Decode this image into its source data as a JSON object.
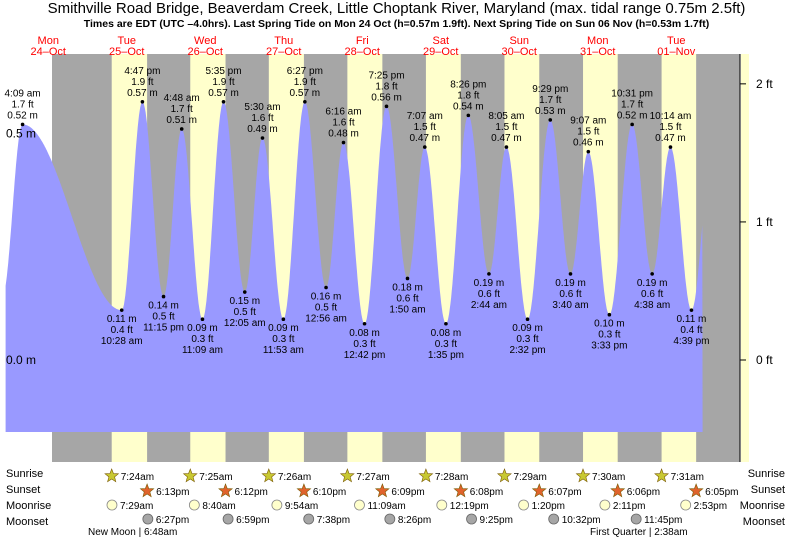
{
  "title": "Smithville Road Bridge, Beaverdam Creek, Little Choptank River, Maryland (max. tidal range 0.75m 2.5ft)",
  "subtitle": "Times are EDT (UTC –4.0hrs). Last Spring Tide on Mon 24 Oct (h=0.57m 1.9ft). Next Spring Tide on Sun 06 Nov (h=0.53m 1.7ft)",
  "colors": {
    "night": "#a6a6a6",
    "day": "#ffffcc",
    "water": "#9999ff",
    "date_label": "#ff0000",
    "sun_star": "#c8c832",
    "set_star": "#e0632c",
    "moonrise": "#ffffcc",
    "moonset": "#a6a6a6"
  },
  "chart_data": {
    "type": "area",
    "title": "Smithville Road Bridge, Beaverdam Creek, Little Choptank River, Maryland (max. tidal range 0.75m 2.5ft)",
    "y_left_ticks": [
      "0.5 m",
      "0.0 m"
    ],
    "y_right_ticks": [
      "2 ft",
      "1 ft",
      "0 ft"
    ],
    "days": [
      {
        "dow": "Mon",
        "date": "24–Oct"
      },
      {
        "dow": "Tue",
        "date": "25–Oct"
      },
      {
        "dow": "Wed",
        "date": "26–Oct"
      },
      {
        "dow": "Thu",
        "date": "27–Oct"
      },
      {
        "dow": "Fri",
        "date": "28–Oct"
      },
      {
        "dow": "Sat",
        "date": "29–Oct"
      },
      {
        "dow": "Sun",
        "date": "30–Oct"
      },
      {
        "dow": "Mon",
        "date": "31–Oct"
      },
      {
        "dow": "Tue",
        "date": "01–Nov"
      }
    ],
    "tides": [
      {
        "type": "high",
        "day": 0,
        "m": "0.52 m",
        "ft": "1.7 ft",
        "time": "4:09 am",
        "v": 0.52
      },
      {
        "type": "low",
        "day": 1,
        "m": "0.11 m",
        "ft": "0.4 ft",
        "time": "10:28 am",
        "v": 0.11
      },
      {
        "type": "high",
        "day": 1,
        "m": "0.57 m",
        "ft": "1.9 ft",
        "time": "4:47 pm",
        "v": 0.57
      },
      {
        "type": "low",
        "day": 1,
        "m": "0.14 m",
        "ft": "0.5 ft",
        "time": "11:15 pm",
        "v": 0.14
      },
      {
        "type": "high",
        "day": 2,
        "m": "0.51 m",
        "ft": "1.7 ft",
        "time": "4:48 am",
        "v": 0.51
      },
      {
        "type": "low",
        "day": 2,
        "m": "0.09 m",
        "ft": "0.3 ft",
        "time": "11:09 am",
        "v": 0.09
      },
      {
        "type": "high",
        "day": 2,
        "m": "0.57 m",
        "ft": "1.9 ft",
        "time": "5:35 pm",
        "v": 0.57
      },
      {
        "type": "low",
        "day": 3,
        "m": "0.15 m",
        "ft": "0.5 ft",
        "time": "12:05 am",
        "v": 0.15
      },
      {
        "type": "high",
        "day": 3,
        "m": "0.49 m",
        "ft": "1.6 ft",
        "time": "5:30 am",
        "v": 0.49
      },
      {
        "type": "low",
        "day": 3,
        "m": "0.09 m",
        "ft": "0.3 ft",
        "time": "11:53 am",
        "v": 0.09
      },
      {
        "type": "high",
        "day": 3,
        "m": "0.57 m",
        "ft": "1.9 ft",
        "time": "6:27 pm",
        "v": 0.57
      },
      {
        "type": "low",
        "day": 4,
        "m": "0.16 m",
        "ft": "0.5 ft",
        "time": "12:56 am",
        "v": 0.16
      },
      {
        "type": "high",
        "day": 4,
        "m": "0.48 m",
        "ft": "1.6 ft",
        "time": "6:16 am",
        "v": 0.48
      },
      {
        "type": "low",
        "day": 4,
        "m": "0.08 m",
        "ft": "0.3 ft",
        "time": "12:42 pm",
        "v": 0.08
      },
      {
        "type": "high",
        "day": 4,
        "m": "0.56 m",
        "ft": "1.8 ft",
        "time": "7:25 pm",
        "v": 0.56
      },
      {
        "type": "low",
        "day": 5,
        "m": "0.18 m",
        "ft": "0.6 ft",
        "time": "1:50 am",
        "v": 0.18
      },
      {
        "type": "high",
        "day": 5,
        "m": "0.47 m",
        "ft": "1.5 ft",
        "time": "7:07 am",
        "v": 0.47
      },
      {
        "type": "low",
        "day": 5,
        "m": "0.08 m",
        "ft": "0.3 ft",
        "time": "1:35 pm",
        "v": 0.08
      },
      {
        "type": "high",
        "day": 5,
        "m": "0.54 m",
        "ft": "1.8 ft",
        "time": "8:26 pm",
        "v": 0.54
      },
      {
        "type": "low",
        "day": 6,
        "m": "0.19 m",
        "ft": "0.6 ft",
        "time": "2:44 am",
        "v": 0.19
      },
      {
        "type": "high",
        "day": 6,
        "m": "0.47 m",
        "ft": "1.5 ft",
        "time": "8:05 am",
        "v": 0.47
      },
      {
        "type": "low",
        "day": 6,
        "m": "0.09 m",
        "ft": "0.3 ft",
        "time": "2:32 pm",
        "v": 0.09
      },
      {
        "type": "high",
        "day": 6,
        "m": "0.53 m",
        "ft": "1.7 ft",
        "time": "9:29 pm",
        "v": 0.53
      },
      {
        "type": "low",
        "day": 7,
        "m": "0.19 m",
        "ft": "0.6 ft",
        "time": "3:40 am",
        "v": 0.19
      },
      {
        "type": "high",
        "day": 7,
        "m": "0.46 m",
        "ft": "1.5 ft",
        "time": "9:07 am",
        "v": 0.46
      },
      {
        "type": "low",
        "day": 7,
        "m": "0.10 m",
        "ft": "0.3 ft",
        "time": "3:33 pm",
        "v": 0.1
      },
      {
        "type": "high",
        "day": 7,
        "m": "0.52 m",
        "ft": "1.7 ft",
        "time": "10:31 pm",
        "v": 0.52
      },
      {
        "type": "low",
        "day": 8,
        "m": "0.19 m",
        "ft": "0.6 ft",
        "time": "4:38 am",
        "v": 0.19
      },
      {
        "type": "high",
        "day": 8,
        "m": "0.47 m",
        "ft": "1.5 ft",
        "time": "10:14 am",
        "v": 0.47
      },
      {
        "type": "low",
        "day": 8,
        "m": "0.11 m",
        "ft": "0.4 ft",
        "time": "4:39 pm",
        "v": 0.11
      }
    ],
    "sunrise": [
      "7:24am",
      "7:25am",
      "7:26am",
      "7:27am",
      "7:28am",
      "7:29am",
      "7:30am",
      "7:31am"
    ],
    "sunset": [
      "6:13pm",
      "6:12pm",
      "6:10pm",
      "6:09pm",
      "6:08pm",
      "6:07pm",
      "6:06pm",
      "6:05pm"
    ],
    "moonrise": [
      "7:29am",
      "8:40am",
      "9:54am",
      "11:09am",
      "12:19pm",
      "1:20pm",
      "2:11pm",
      "2:53pm"
    ],
    "moonset": [
      "6:27pm",
      "6:59pm",
      "7:38pm",
      "8:26pm",
      "9:25pm",
      "10:32pm",
      "11:45pm"
    ],
    "row_labels": {
      "sunrise": "Sunrise",
      "sunset": "Sunset",
      "moonrise": "Moonrise",
      "moonset": "Moonset"
    },
    "moon_phases": [
      {
        "label": "New Moon | 6:48am"
      },
      {
        "label": "First Quarter | 2:38am"
      }
    ]
  }
}
